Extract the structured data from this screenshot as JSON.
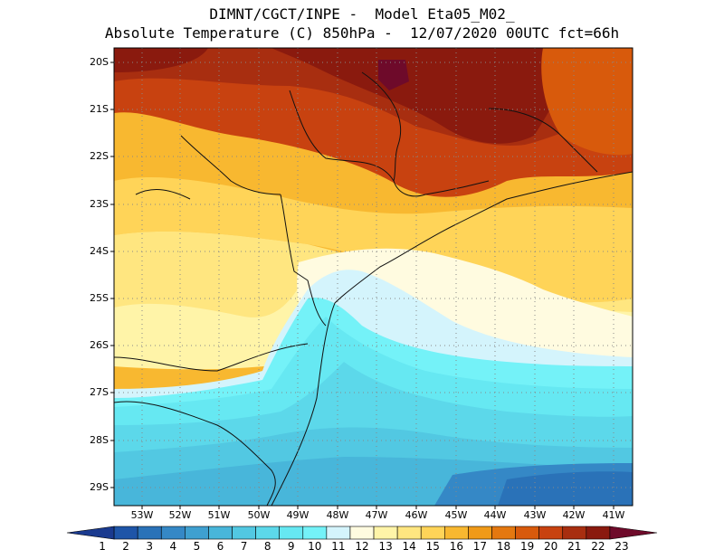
{
  "header": {
    "line1": "DIMNT/CGCT/INPE -  Model Eta05_M02_",
    "line2": "Absolute Temperature (C) 850hPa -  12/07/2020 00UTC fct=66h"
  },
  "axes": {
    "lat_labels": [
      "20S",
      "21S",
      "22S",
      "23S",
      "24S",
      "25S",
      "26S",
      "27S",
      "28S",
      "29S"
    ],
    "lon_labels": [
      "53W",
      "52W",
      "51W",
      "50W",
      "49W",
      "48W",
      "47W",
      "46W",
      "45W",
      "44W",
      "43W",
      "42W",
      "41W"
    ]
  },
  "colorbar": {
    "labels": [
      "1",
      "2",
      "3",
      "4",
      "5",
      "6",
      "7",
      "8",
      "9",
      "10",
      "11",
      "12",
      "13",
      "14",
      "15",
      "16",
      "17",
      "18",
      "19",
      "20",
      "21",
      "22",
      "23"
    ],
    "colors": [
      "#1a3a8f",
      "#1e55a8",
      "#2a72b8",
      "#3588c6",
      "#3fa0d0",
      "#48b6da",
      "#52c8e2",
      "#5cd8ea",
      "#66e8f2",
      "#74f2f8",
      "#d4f4fc",
      "#fffbe0",
      "#fff4a8",
      "#ffe680",
      "#ffd458",
      "#f8b830",
      "#f09a18",
      "#e47810",
      "#d85a0c",
      "#c84210",
      "#a82e10",
      "#8a1a0e",
      "#6e0a2a"
    ]
  },
  "chart_data": {
    "type": "heatmap",
    "title": "Absolute Temperature (C) 850hPa",
    "xlabel": "",
    "ylabel": "",
    "lon_range": [
      -53.8,
      -40.4
    ],
    "lat_range": [
      -29.4,
      -19.8
    ],
    "color_scale_range": [
      1,
      23
    ],
    "grid": true
  }
}
